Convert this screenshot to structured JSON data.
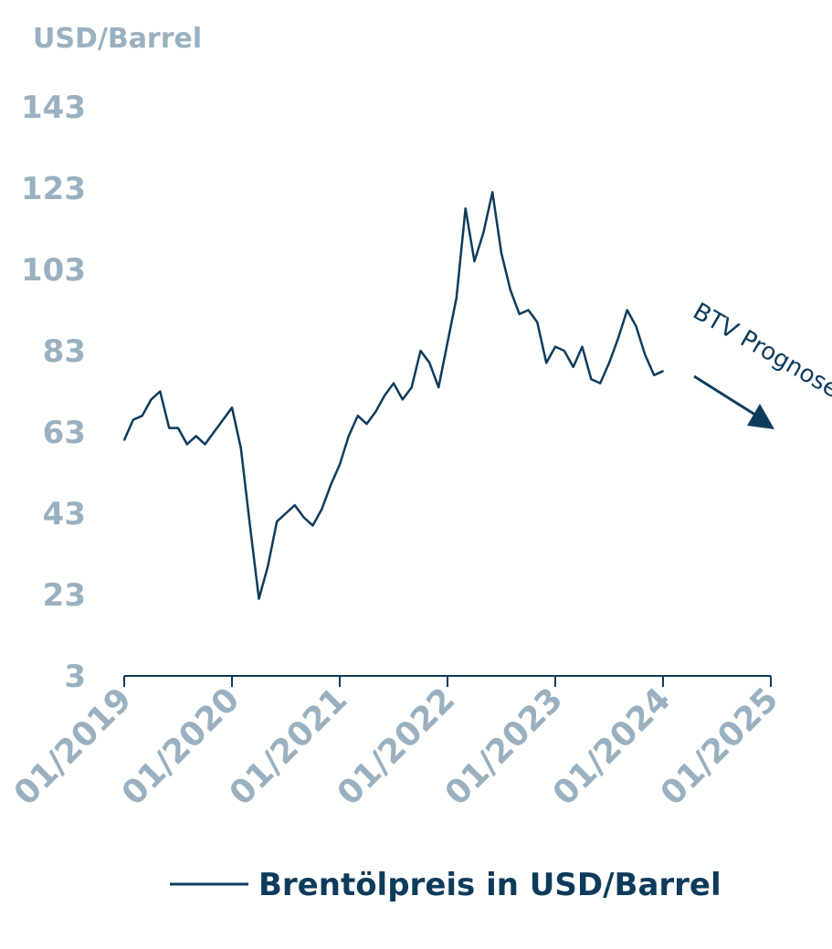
{
  "colors": {
    "line": "#0d3b5c",
    "axis_text": "#9ab0c0",
    "axis": "#0d3b5c"
  },
  "chart_data": {
    "type": "line",
    "ylabel": "USD/Barrel",
    "yticks": [
      3,
      23,
      43,
      63,
      83,
      103,
      123,
      143
    ],
    "xticks": [
      "01/2019",
      "01/2020",
      "01/2021",
      "01/2022",
      "01/2023",
      "01/2024",
      "01/2025"
    ],
    "xlim": [
      "2019-01",
      "2025-01"
    ],
    "ylim": [
      3,
      143
    ],
    "grid": false,
    "legend": "bottom",
    "annotation": "BTV Prognose",
    "series": [
      {
        "name": "Brentölpreis in USD/Barrel",
        "points": [
          [
            "2019-01",
            61
          ],
          [
            "2019-02",
            66
          ],
          [
            "2019-03",
            67
          ],
          [
            "2019-04",
            71
          ],
          [
            "2019-05",
            73
          ],
          [
            "2019-06",
            64
          ],
          [
            "2019-07",
            64
          ],
          [
            "2019-08",
            60
          ],
          [
            "2019-09",
            62
          ],
          [
            "2019-10",
            60
          ],
          [
            "2019-11",
            63
          ],
          [
            "2019-12",
            66
          ],
          [
            "2020-01",
            69
          ],
          [
            "2020-02",
            59
          ],
          [
            "2020-03",
            40
          ],
          [
            "2020-04",
            22
          ],
          [
            "2020-05",
            30
          ],
          [
            "2020-06",
            41
          ],
          [
            "2020-07",
            43
          ],
          [
            "2020-08",
            45
          ],
          [
            "2020-09",
            42
          ],
          [
            "2020-10",
            40
          ],
          [
            "2020-11",
            44
          ],
          [
            "2020-12",
            50
          ],
          [
            "2021-01",
            55
          ],
          [
            "2021-02",
            62
          ],
          [
            "2021-03",
            67
          ],
          [
            "2021-04",
            65
          ],
          [
            "2021-05",
            68
          ],
          [
            "2021-06",
            72
          ],
          [
            "2021-07",
            75
          ],
          [
            "2021-08",
            71
          ],
          [
            "2021-09",
            74
          ],
          [
            "2021-10",
            83
          ],
          [
            "2021-11",
            80
          ],
          [
            "2021-12",
            74
          ],
          [
            "2022-01",
            85
          ],
          [
            "2022-02",
            96
          ],
          [
            "2022-03",
            118
          ],
          [
            "2022-04",
            105
          ],
          [
            "2022-05",
            112
          ],
          [
            "2022-06",
            122
          ],
          [
            "2022-07",
            107
          ],
          [
            "2022-08",
            98
          ],
          [
            "2022-09",
            92
          ],
          [
            "2022-10",
            93
          ],
          [
            "2022-11",
            90
          ],
          [
            "2022-12",
            80
          ],
          [
            "2023-01",
            84
          ],
          [
            "2023-02",
            83
          ],
          [
            "2023-03",
            79
          ],
          [
            "2023-04",
            84
          ],
          [
            "2023-05",
            76
          ],
          [
            "2023-06",
            75
          ],
          [
            "2023-07",
            80
          ],
          [
            "2023-08",
            86
          ],
          [
            "2023-09",
            93
          ],
          [
            "2023-10",
            89
          ],
          [
            "2023-11",
            82
          ],
          [
            "2023-12",
            77
          ],
          [
            "2024-01",
            78
          ]
        ]
      }
    ]
  }
}
